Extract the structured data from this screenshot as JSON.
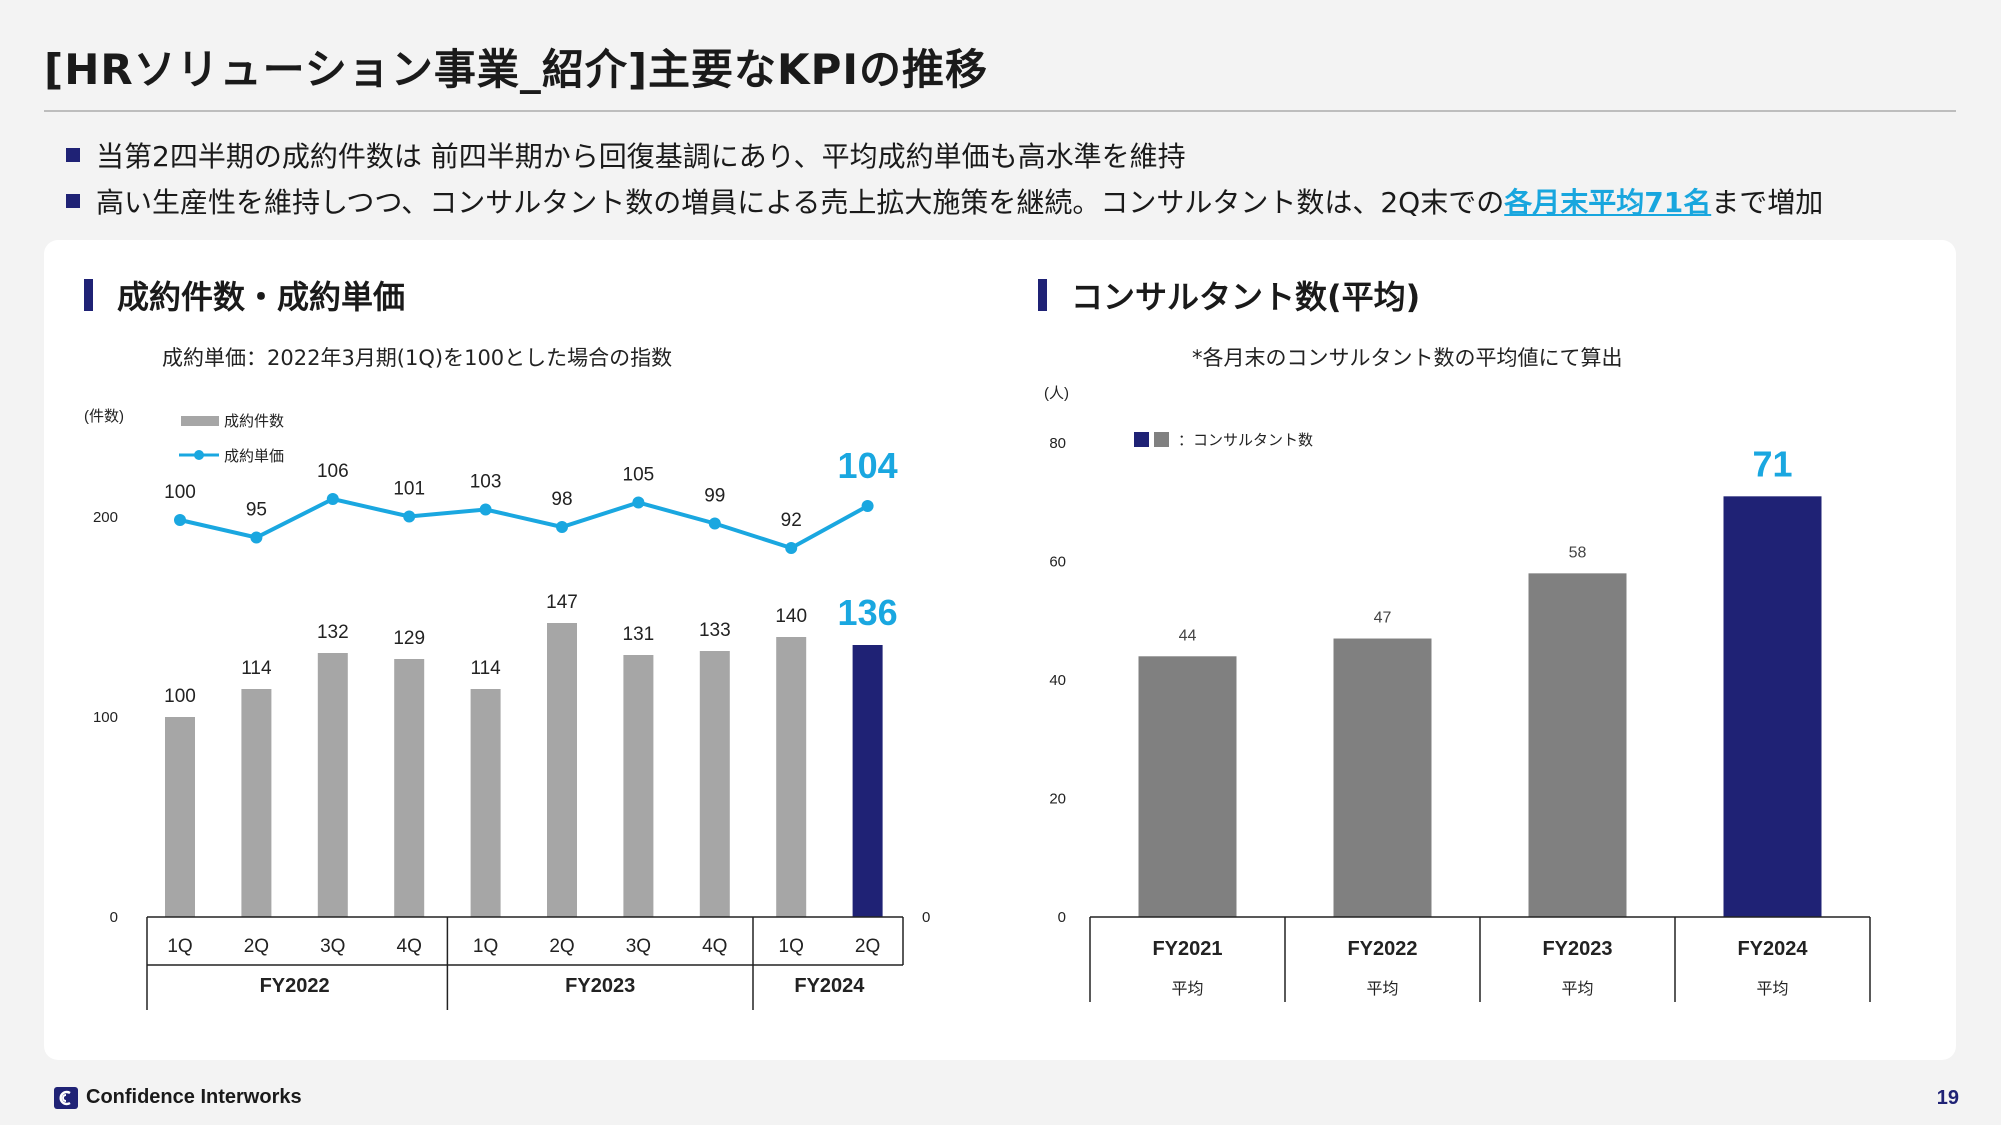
{
  "title": "[HRソリューション事業_紹介]主要なKPIの推移",
  "bullets": [
    {
      "text": "当第2四半期の成約件数は 前四半期から回復基調にあり、平均成約単価も高水準を維持"
    },
    {
      "pre": "高い生産性を維持しつつ、コンサルタント数の増員による売上拡大施策を継続。コンサルタント数は、2Q末での",
      "highlight": "各月末平均71名",
      "post": "まで増加"
    }
  ],
  "left_section": {
    "title": "成約件数・成約単価",
    "note": "成約単価：2022年3月期(1Q)を100とした場合の指数"
  },
  "right_section": {
    "title": "コンサルタント数(平均)",
    "note": "*各月末のコンサルタント数の平均値にて算出"
  },
  "chart_data": [
    {
      "type": "bar",
      "yunit": "(件数)",
      "ylim": [
        0,
        200
      ],
      "yticks": [
        0,
        100,
        200
      ],
      "categories": [
        "1Q",
        "2Q",
        "3Q",
        "4Q",
        "1Q",
        "2Q",
        "3Q",
        "4Q",
        "1Q",
        "2Q"
      ],
      "groups": [
        {
          "label": "FY2022",
          "span": 4
        },
        {
          "label": "FY2023",
          "span": 4
        },
        {
          "label": "FY2024",
          "span": 2
        }
      ],
      "series": [
        {
          "name": "成約件数",
          "kind": "bar",
          "values": [
            100,
            114,
            132,
            129,
            114,
            147,
            131,
            133,
            140,
            136
          ],
          "color": "#a6a6a6",
          "highlight_color": "#1f2275"
        },
        {
          "name": "成約単価",
          "kind": "line",
          "values": [
            100,
            95,
            106,
            101,
            103,
            98,
            105,
            99,
            92,
            104
          ],
          "color": "#1aa7e0"
        }
      ],
      "right_axis_tick": "0",
      "legend": "top-left"
    },
    {
      "type": "bar",
      "yunit": "(人)",
      "ylim": [
        0,
        80
      ],
      "yticks": [
        0,
        20,
        40,
        60,
        80
      ],
      "legend_label": "：コンサルタント数",
      "categories": [
        "FY2021",
        "FY2022",
        "FY2023",
        "FY2024"
      ],
      "sublabels": [
        "平均",
        "平均",
        "平均",
        "平均"
      ],
      "values": [
        44,
        47,
        58,
        71
      ],
      "colors": [
        "#808080",
        "#808080",
        "#808080",
        "#1f2275"
      ],
      "highlight_label_color": "#1aa7e0"
    }
  ],
  "footer": {
    "brand": "Confidence Interworks",
    "page": "19"
  }
}
